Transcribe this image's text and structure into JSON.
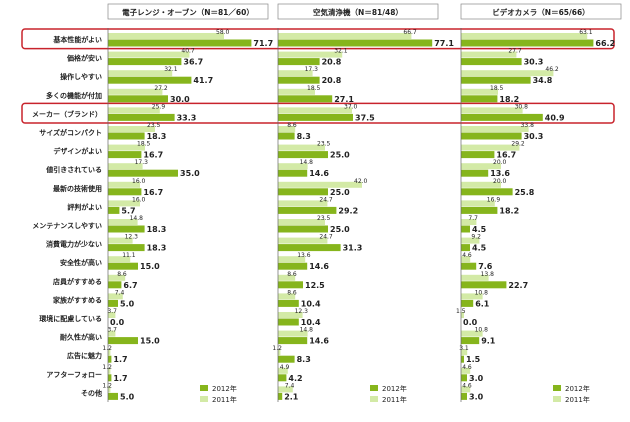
{
  "chart_data": [
    {
      "type": "bar",
      "orientation": "horizontal",
      "title": "電子レンジ・オーブン（N＝81／60）",
      "categories": [
        "基本性能がよい",
        "価格が安い",
        "操作しやすい",
        "多くの機能が付加",
        "メーカー（ブランド）",
        "サイズがコンパクト",
        "デザインがよい",
        "値引きされている",
        "最新の技術使用",
        "評判がよい",
        "メンテナンスしやすい",
        "消費電力が少ない",
        "安全性が高い",
        "店員がすすめる",
        "家族がすすめる",
        "環境に配慮している",
        "耐久性が高い",
        "広告に魅力",
        "アフターフォロー",
        "その他"
      ],
      "xlim": [
        0,
        80
      ],
      "series": [
        {
          "name": "2012年",
          "color": "#86b51c",
          "values": [
            71.7,
            36.7,
            41.7,
            30.0,
            33.3,
            18.3,
            16.7,
            35.0,
            16.7,
            5.7,
            18.3,
            18.3,
            15.0,
            6.7,
            5.0,
            0.0,
            15.0,
            1.7,
            1.7,
            5.0
          ],
          "value_labels": [
            "71.7",
            "36.7",
            "41.7",
            "30.0",
            "33.3",
            "18.3",
            "16.7",
            "35.0",
            "16.7",
            "5.7",
            "18.3",
            "18.3",
            "15.0",
            "6.7",
            "5.0",
            "0.0",
            "15.0",
            "1.7",
            "1.7",
            "5.0"
          ]
        },
        {
          "name": "2011年",
          "color": "#d3eaa6",
          "values": [
            58.0,
            40.7,
            32.1,
            27.2,
            25.9,
            23.5,
            18.5,
            17.3,
            16.0,
            16.0,
            14.8,
            12.3,
            11.1,
            8.6,
            7.4,
            3.7,
            3.7,
            1.2,
            1.2,
            1.2
          ],
          "value_labels": [
            "58.0",
            "40.7",
            "32.1",
            "27.2",
            "25.9",
            "23.5",
            "18.5",
            "17.3",
            "16.0",
            "16.0",
            "14.8",
            "12.3",
            "11.1",
            "8.6",
            "7.4",
            "3.7",
            "3.7",
            "1.2",
            "1.2",
            "1.2"
          ]
        }
      ]
    },
    {
      "type": "bar",
      "orientation": "horizontal",
      "title": "空気清浄機（N＝81/48）",
      "xlim": [
        0,
        80
      ],
      "series": [
        {
          "name": "2012年",
          "color": "#86b51c",
          "values": [
            77.1,
            20.8,
            20.8,
            27.1,
            37.5,
            8.3,
            25.0,
            14.6,
            25.0,
            29.2,
            25.0,
            31.3,
            14.6,
            12.5,
            10.4,
            10.4,
            14.6,
            8.3,
            4.2,
            2.1
          ],
          "value_labels": [
            "77.1",
            "20.8",
            "20.8",
            "27.1",
            "37.5",
            "8.3",
            "25.0",
            "14.6",
            "25.0",
            "29.2",
            "25.0",
            "31.3",
            "14.6",
            "12.5",
            "10.4",
            "10.4",
            "14.6",
            "8.3",
            "4.2",
            "2.1"
          ]
        },
        {
          "name": "2011年",
          "color": "#d3eaa6",
          "values": [
            66.7,
            32.1,
            17.3,
            18.5,
            37.0,
            8.6,
            23.5,
            14.8,
            42.0,
            24.7,
            23.5,
            24.7,
            13.6,
            8.6,
            8.6,
            12.3,
            14.8,
            1.2,
            4.9,
            7.4
          ],
          "value_labels": [
            "66.7",
            "32.1",
            "17.3",
            "18.5",
            "37.0",
            "8.6",
            "23.5",
            "14.8",
            "42.0",
            "24.7",
            "23.5",
            "24.7",
            "13.6",
            "8.6",
            "8.6",
            "12.3",
            "14.8",
            "1.2",
            "4.9",
            "7.4"
          ]
        }
      ]
    },
    {
      "type": "bar",
      "orientation": "horizontal",
      "title": "ビデオカメラ（N＝65/66）",
      "xlim": [
        0,
        80
      ],
      "series": [
        {
          "name": "2012年",
          "color": "#86b51c",
          "values": [
            66.2,
            30.3,
            34.8,
            18.2,
            40.9,
            30.3,
            16.7,
            13.6,
            25.8,
            18.2,
            4.5,
            4.5,
            7.6,
            22.7,
            6.1,
            0.0,
            9.1,
            1.5,
            3.0,
            3.0
          ],
          "value_labels": [
            "66.2",
            "30.3",
            "34.8",
            "18.2",
            "40.9",
            "30.3",
            "16.7",
            "13.6",
            "25.8",
            "18.2",
            "4.5",
            "4.5",
            "7.6",
            "22.7",
            "6.1",
            "0.0",
            "9.1",
            "1.5",
            "3.0",
            "3.0"
          ]
        },
        {
          "name": "2011年",
          "color": "#d3eaa6",
          "values": [
            63.1,
            27.7,
            46.2,
            18.5,
            30.8,
            33.8,
            29.2,
            20.0,
            20.0,
            16.9,
            7.7,
            9.2,
            4.6,
            13.8,
            10.8,
            1.5,
            10.8,
            3.1,
            4.6,
            4.6
          ],
          "value_labels": [
            "63.1",
            "27.7",
            "46.2",
            "18.5",
            "30.8",
            "33.8",
            "29.2",
            "20.0",
            "20.0",
            "16.9",
            "7.7",
            "9.2",
            "4.6",
            "13.8",
            "10.8",
            "1.5",
            "10.8",
            "3.1",
            "4.6",
            "4.6"
          ]
        }
      ]
    }
  ]
}
